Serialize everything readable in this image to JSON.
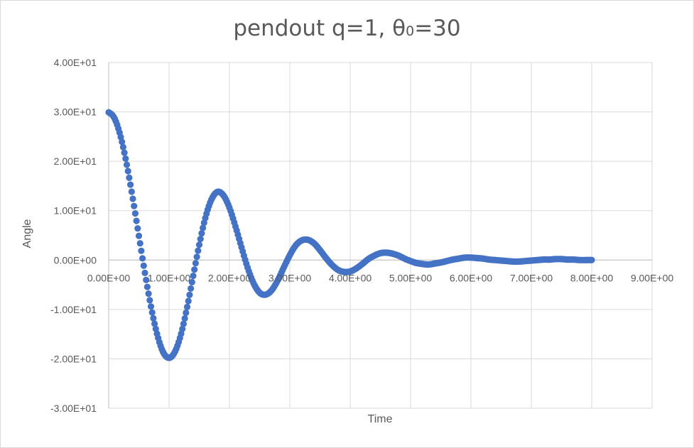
{
  "chart_data": {
    "type": "scatter",
    "title": "pendout  q=1, θ",
    "title_subscript": "0",
    "title_suffix": "=30",
    "xlabel": "Time",
    "ylabel": "Angle",
    "xlim": [
      0,
      9
    ],
    "ylim": [
      -30,
      40
    ],
    "xticks": [
      0,
      1,
      2,
      3,
      4,
      5,
      6,
      7,
      8,
      9
    ],
    "yticks": [
      -30,
      -20,
      -10,
      0,
      10,
      20,
      30,
      40
    ],
    "xtick_labels": [
      "0.00E+00",
      "1.00E+00",
      "2.00E+00",
      "3.00E+00",
      "4.00E+00",
      "5.00E+00",
      "6.00E+00",
      "7.00E+00",
      "8.00E+00",
      "9.00E+00"
    ],
    "ytick_labels": [
      "-3.00E+01",
      "-2.00E+01",
      "-1.00E+01",
      "0.00E+00",
      "1.00E+01",
      "2.00E+01",
      "3.00E+01",
      "4.00E+01"
    ],
    "grid": true,
    "marker_color": "#4472c4",
    "series": [
      {
        "name": "Angle",
        "x": [
          0.0,
          0.1,
          0.2,
          0.3,
          0.4,
          0.5,
          0.6,
          0.7,
          0.8,
          0.9,
          1.0,
          1.1,
          1.2,
          1.3,
          1.4,
          1.5,
          1.6,
          1.7,
          1.8,
          1.9,
          2.0,
          2.1,
          2.2,
          2.3,
          2.4,
          2.5,
          2.6,
          2.7,
          2.8,
          2.9,
          3.0,
          3.1,
          3.2,
          3.3,
          3.4,
          3.5,
          3.6,
          3.7,
          3.8,
          3.9,
          4.0,
          4.1,
          4.2,
          4.3,
          4.4,
          4.5,
          4.6,
          4.7,
          4.8,
          4.9,
          5.0,
          5.1,
          5.2,
          5.3,
          5.4,
          5.5,
          5.6,
          5.7,
          5.8,
          5.9,
          6.0,
          6.1,
          6.2,
          6.3,
          6.4,
          6.5,
          6.6,
          6.7,
          6.8,
          6.9,
          7.0,
          7.1,
          7.2,
          7.3,
          7.4,
          7.5,
          7.6,
          7.7,
          7.8,
          7.9,
          8.0
        ],
        "y": [
          29.9,
          28.6,
          24.9,
          19.3,
          12.4,
          4.9,
          -2.6,
          -9.4,
          -14.9,
          -18.6,
          -19.8,
          -18.5,
          -14.9,
          -9.5,
          -3.2,
          3.1,
          8.5,
          12.2,
          13.8,
          13.1,
          10.6,
          6.8,
          2.6,
          -1.5,
          -4.7,
          -6.6,
          -7.0,
          -6.1,
          -4.1,
          -1.5,
          1.0,
          3.0,
          4.0,
          4.1,
          3.4,
          2.0,
          0.4,
          -1.0,
          -2.0,
          -2.4,
          -2.3,
          -1.7,
          -0.8,
          0.2,
          0.9,
          1.4,
          1.5,
          1.3,
          0.9,
          0.3,
          -0.2,
          -0.6,
          -0.8,
          -0.9,
          -0.7,
          -0.5,
          -0.2,
          0.1,
          0.3,
          0.5,
          0.5,
          0.4,
          0.3,
          0.1,
          0.0,
          -0.1,
          -0.2,
          -0.3,
          -0.3,
          -0.2,
          -0.1,
          0.0,
          0.1,
          0.1,
          0.2,
          0.2,
          0.1,
          0.1,
          0.0,
          0.0,
          0.0
        ]
      }
    ]
  }
}
